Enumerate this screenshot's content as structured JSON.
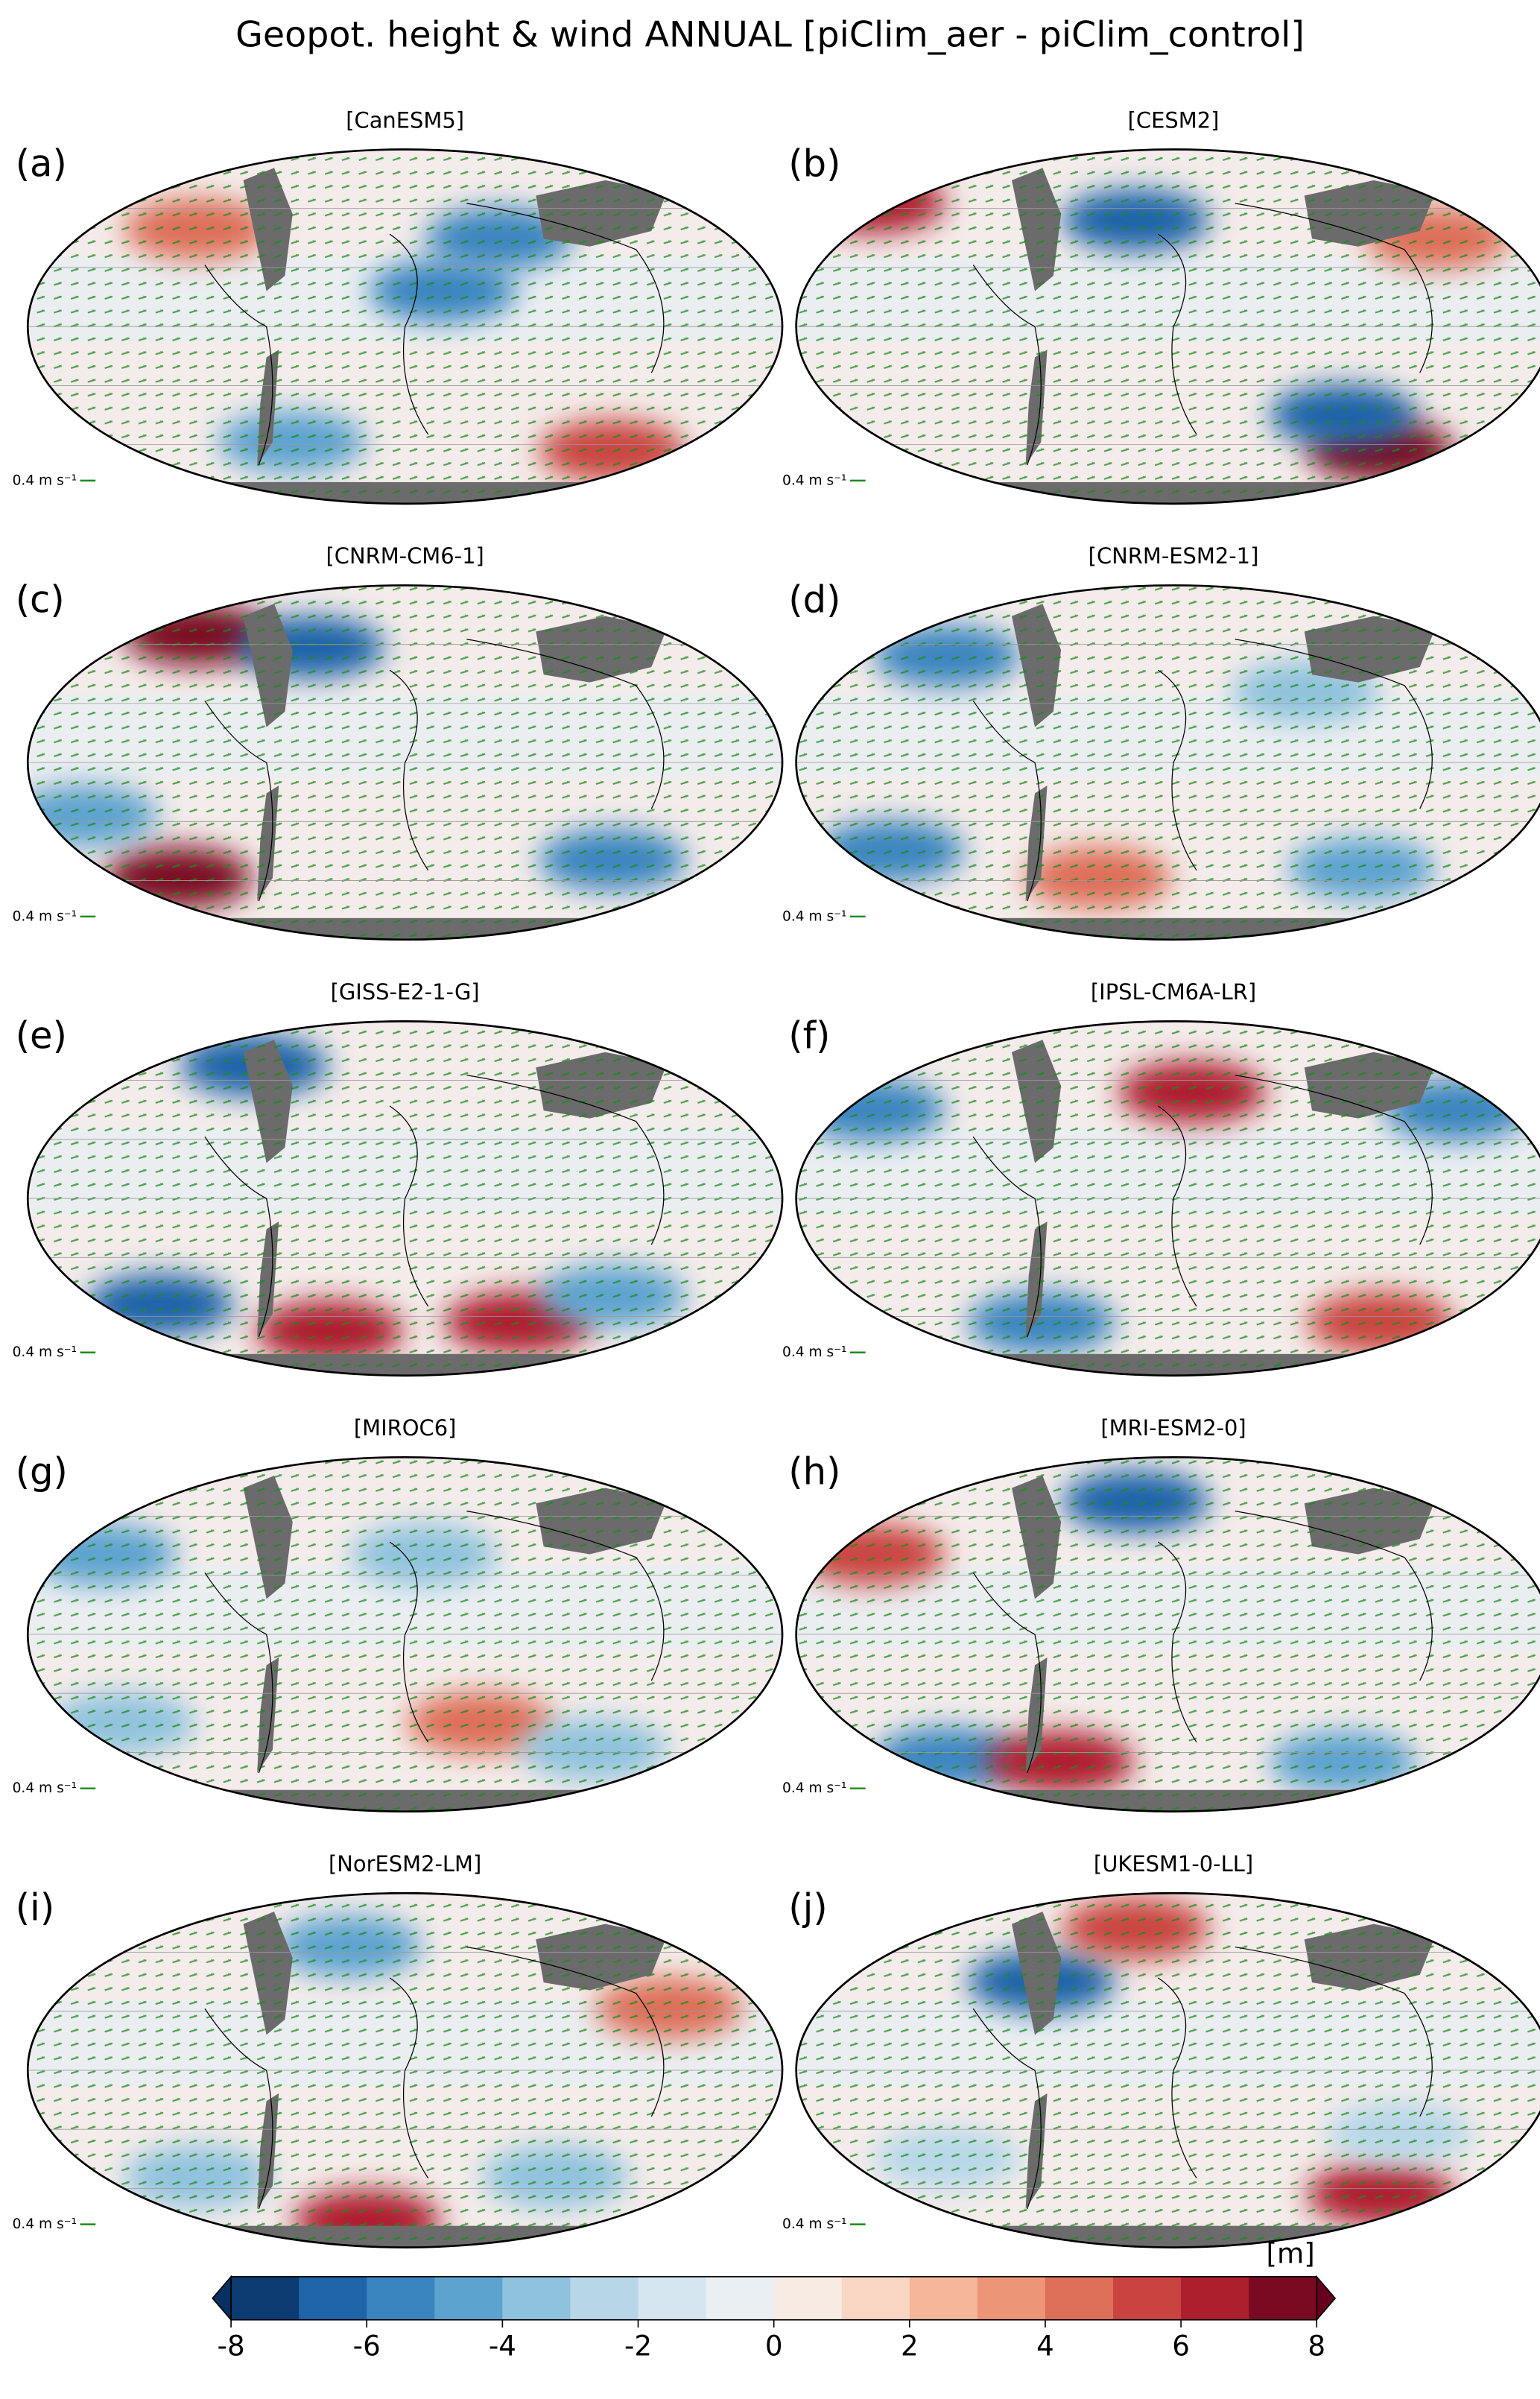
{
  "title": "Geopot.  height & wind  ANNUAL [piClim_aer - piClim_control]",
  "panels": [
    {
      "label": "(a)",
      "model": "[CanESM5]",
      "reference_vector": "0.4 m s⁻¹"
    },
    {
      "label": "(b)",
      "model": "[CESM2]",
      "reference_vector": "0.4 m s⁻¹"
    },
    {
      "label": "(c)",
      "model": "[CNRM-CM6-1]",
      "reference_vector": "0.4 m s⁻¹"
    },
    {
      "label": "(d)",
      "model": "[CNRM-ESM2-1]",
      "reference_vector": "0.4 m s⁻¹"
    },
    {
      "label": "(e)",
      "model": "[GISS-E2-1-G]",
      "reference_vector": "0.4 m s⁻¹"
    },
    {
      "label": "(f)",
      "model": "[IPSL-CM6A-LR]",
      "reference_vector": "0.4 m s⁻¹"
    },
    {
      "label": "(g)",
      "model": "[MIROC6]",
      "reference_vector": "0.4 m s⁻¹"
    },
    {
      "label": "(h)",
      "model": "[MRI-ESM2-0]",
      "reference_vector": "0.4 m s⁻¹"
    },
    {
      "label": "(i)",
      "model": "[NorESM2-LM]",
      "reference_vector": "0.4 m s⁻¹"
    },
    {
      "label": "(j)",
      "model": "[UKESM1-0-LL]",
      "reference_vector": "0.4 m s⁻¹"
    }
  ],
  "colorbar": {
    "label": "[m]",
    "xlim": [
      -8,
      8
    ],
    "xticks": [
      -8,
      -6,
      -4,
      -2,
      0,
      2,
      4,
      6,
      8
    ],
    "colors": [
      "#0b3b70",
      "#1f63a8",
      "#3a85bf",
      "#5da3cf",
      "#8fc2dd",
      "#b7d7e8",
      "#d5e6f0",
      "#eaeff3",
      "#f8ebe4",
      "#f9d5c4",
      "#f5b69a",
      "#ec9577",
      "#dd6e58",
      "#c94440",
      "#ad1f2d",
      "#7a0a22"
    ],
    "under_color": "#053061",
    "over_color": "#67001f"
  }
}
